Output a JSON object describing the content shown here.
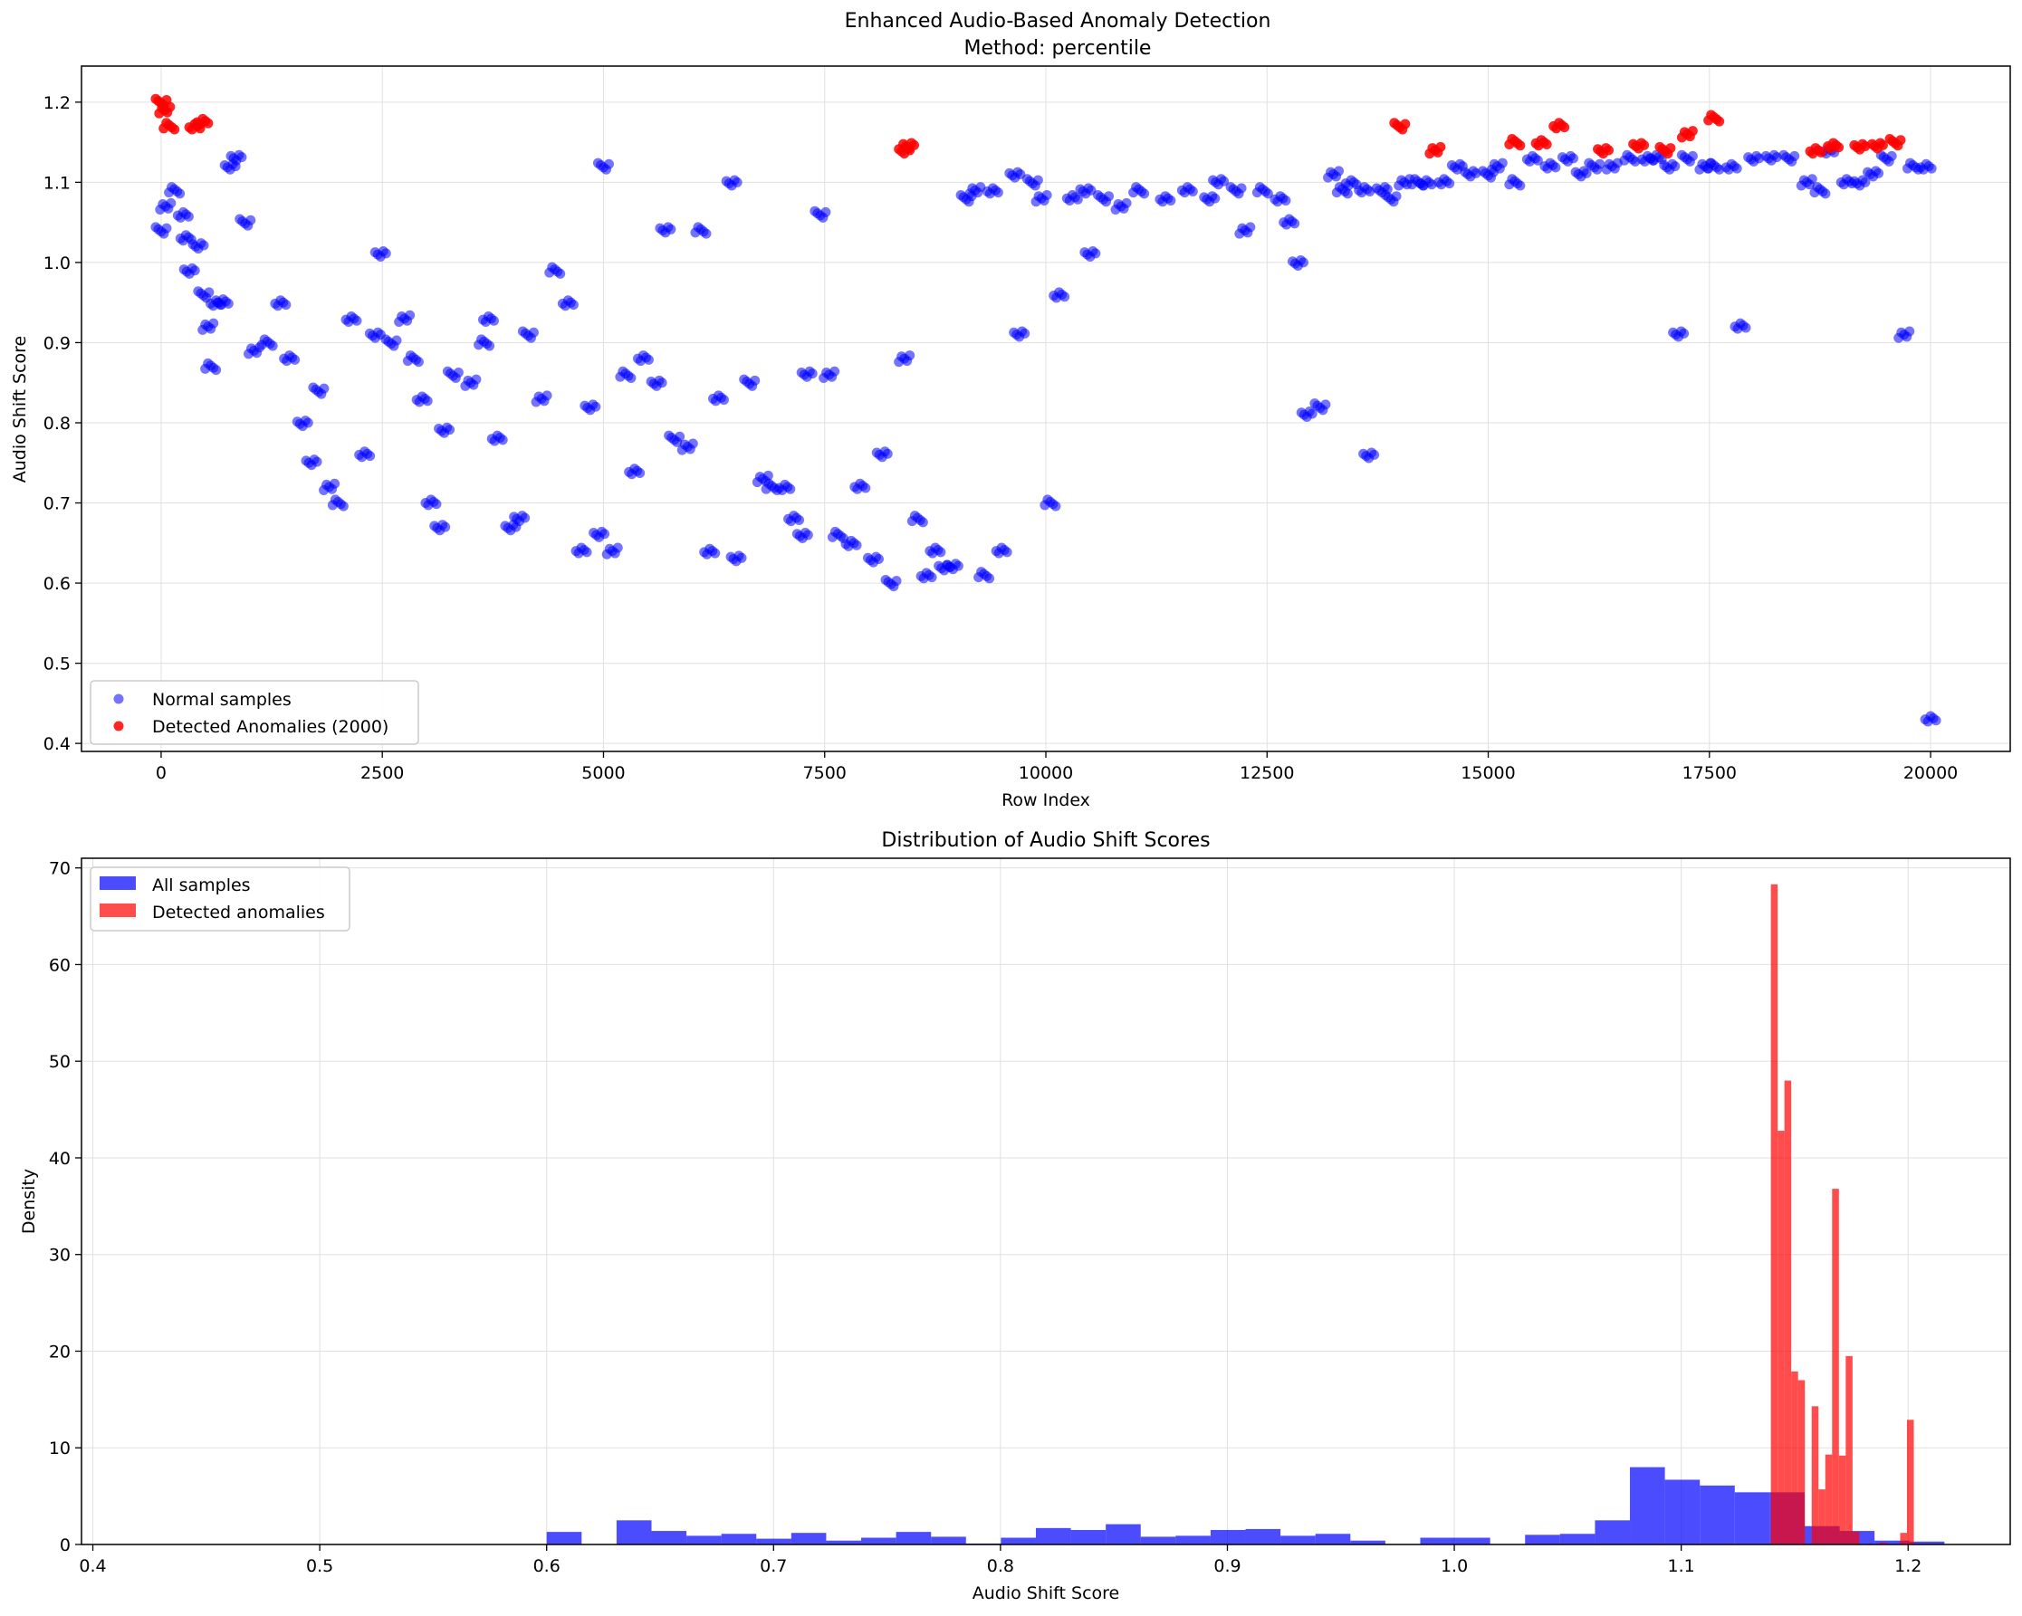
{
  "colors": {
    "normal": "#0000ff",
    "anomaly": "#ff0000",
    "grid": "#e0e0e0",
    "axis": "#000000"
  },
  "chart_data": [
    {
      "type": "scatter",
      "title": "Enhanced Audio-Based Anomaly Detection",
      "subtitle": "Method: percentile",
      "xlabel": "Row Index",
      "ylabel": "Audio Shift Score",
      "xlim": [
        -900,
        20900
      ],
      "ylim": [
        0.39,
        1.245
      ],
      "xticks": [
        0,
        2500,
        5000,
        7500,
        10000,
        12500,
        15000,
        17500,
        20000
      ],
      "yticks": [
        0.4,
        0.5,
        0.6,
        0.7,
        0.8,
        0.9,
        1.0,
        1.1,
        1.2
      ],
      "ytick_labels": [
        "0.4",
        "0.5",
        "0.6",
        "0.7",
        "0.8",
        "0.9",
        "1.0",
        "1.1",
        "1.2"
      ],
      "grid": true,
      "legend_position": "lower-left",
      "series": [
        {
          "name": "Normal samples",
          "color": "#0000ff",
          "segments": [
            [
              0,
              1.04
            ],
            [
              50,
              1.07
            ],
            [
              150,
              1.09
            ],
            [
              250,
              1.06
            ],
            [
              280,
              1.03
            ],
            [
              320,
              0.99
            ],
            [
              420,
              1.02
            ],
            [
              480,
              0.96
            ],
            [
              530,
              0.92
            ],
            [
              560,
              0.87
            ],
            [
              620,
              0.95
            ],
            [
              700,
              0.95
            ],
            [
              780,
              1.12
            ],
            [
              850,
              1.13
            ],
            [
              950,
              1.05
            ],
            [
              1050,
              0.89
            ],
            [
              1200,
              0.9
            ],
            [
              1350,
              0.95
            ],
            [
              1450,
              0.88
            ],
            [
              1600,
              0.8
            ],
            [
              1700,
              0.75
            ],
            [
              1780,
              0.84
            ],
            [
              1900,
              0.72
            ],
            [
              2000,
              0.7
            ],
            [
              2150,
              0.93
            ],
            [
              2300,
              0.76
            ],
            [
              2420,
              0.91
            ],
            [
              2480,
              1.01
            ],
            [
              2600,
              0.9
            ],
            [
              2750,
              0.93
            ],
            [
              2850,
              0.88
            ],
            [
              2950,
              0.83
            ],
            [
              3050,
              0.7
            ],
            [
              3150,
              0.67
            ],
            [
              3200,
              0.79
            ],
            [
              3300,
              0.86
            ],
            [
              3500,
              0.85
            ],
            [
              3650,
              0.9
            ],
            [
              3700,
              0.93
            ],
            [
              3800,
              0.78
            ],
            [
              3950,
              0.67
            ],
            [
              4050,
              0.68
            ],
            [
              4150,
              0.91
            ],
            [
              4300,
              0.83
            ],
            [
              4450,
              0.99
            ],
            [
              4600,
              0.95
            ],
            [
              4750,
              0.64
            ],
            [
              4850,
              0.82
            ],
            [
              4950,
              0.66
            ],
            [
              5000,
              1.12
            ],
            [
              5100,
              0.64
            ],
            [
              5250,
              0.86
            ],
            [
              5350,
              0.74
            ],
            [
              5450,
              0.88
            ],
            [
              5600,
              0.85
            ],
            [
              5700,
              1.04
            ],
            [
              5800,
              0.78
            ],
            [
              5950,
              0.77
            ],
            [
              6100,
              1.04
            ],
            [
              6200,
              0.64
            ],
            [
              6300,
              0.83
            ],
            [
              6450,
              1.1
            ],
            [
              6500,
              0.63
            ],
            [
              6650,
              0.85
            ],
            [
              6800,
              0.73
            ],
            [
              6900,
              0.72
            ],
            [
              7050,
              0.72
            ],
            [
              7150,
              0.68
            ],
            [
              7250,
              0.66
            ],
            [
              7300,
              0.86
            ],
            [
              7450,
              1.06
            ],
            [
              7550,
              0.86
            ],
            [
              7650,
              0.66
            ],
            [
              7800,
              0.65
            ],
            [
              7900,
              0.72
            ],
            [
              8050,
              0.63
            ],
            [
              8150,
              0.76
            ],
            [
              8250,
              0.6
            ],
            [
              8400,
              0.88
            ],
            [
              8550,
              0.68
            ],
            [
              8650,
              0.61
            ],
            [
              8750,
              0.64
            ],
            [
              8850,
              0.62
            ],
            [
              8950,
              0.62
            ],
            [
              9100,
              1.08
            ],
            [
              9200,
              1.09
            ],
            [
              9300,
              0.61
            ],
            [
              9400,
              1.09
            ],
            [
              9500,
              0.64
            ],
            [
              9650,
              1.11
            ],
            [
              9700,
              0.91
            ],
            [
              9850,
              1.1
            ],
            [
              9950,
              1.08
            ],
            [
              10050,
              0.7
            ],
            [
              10150,
              0.96
            ],
            [
              10300,
              1.08
            ],
            [
              10450,
              1.09
            ],
            [
              10500,
              1.01
            ],
            [
              10650,
              1.08
            ],
            [
              10850,
              1.07
            ],
            [
              11050,
              1.09
            ],
            [
              11350,
              1.08
            ],
            [
              11600,
              1.09
            ],
            [
              11850,
              1.08
            ],
            [
              11950,
              1.1
            ],
            [
              12150,
              1.09
            ],
            [
              12250,
              1.04
            ],
            [
              12450,
              1.09
            ],
            [
              12650,
              1.08
            ],
            [
              12750,
              1.05
            ],
            [
              12850,
              1.0
            ],
            [
              12950,
              0.81
            ],
            [
              13100,
              0.82
            ],
            [
              13250,
              1.11
            ],
            [
              13350,
              1.09
            ],
            [
              13450,
              1.1
            ],
            [
              13600,
              1.09
            ],
            [
              13650,
              0.76
            ],
            [
              13800,
              1.09
            ],
            [
              13900,
              1.08
            ],
            [
              14050,
              1.1
            ],
            [
              14200,
              1.1
            ],
            [
              14300,
              1.1
            ],
            [
              14500,
              1.1
            ],
            [
              14650,
              1.12
            ],
            [
              14800,
              1.11
            ],
            [
              15000,
              1.11
            ],
            [
              15100,
              1.12
            ],
            [
              15300,
              1.1
            ],
            [
              15500,
              1.13
            ],
            [
              15700,
              1.12
            ],
            [
              15900,
              1.13
            ],
            [
              16050,
              1.11
            ],
            [
              16200,
              1.12
            ],
            [
              16400,
              1.12
            ],
            [
              16600,
              1.13
            ],
            [
              16800,
              1.13
            ],
            [
              16900,
              1.13
            ],
            [
              17050,
              1.12
            ],
            [
              17150,
              0.91
            ],
            [
              17250,
              1.13
            ],
            [
              17450,
              1.12
            ],
            [
              17550,
              1.12
            ],
            [
              17750,
              1.12
            ],
            [
              17850,
              0.92
            ],
            [
              18000,
              1.13
            ],
            [
              18200,
              1.13
            ],
            [
              18400,
              1.13
            ],
            [
              18600,
              1.1
            ],
            [
              18750,
              1.09
            ],
            [
              18850,
              1.14
            ],
            [
              19050,
              1.1
            ],
            [
              19200,
              1.1
            ],
            [
              19350,
              1.11
            ],
            [
              19500,
              1.13
            ],
            [
              19700,
              0.91
            ],
            [
              19800,
              1.12
            ],
            [
              19950,
              1.12
            ],
            [
              20000,
              0.43
            ]
          ]
        },
        {
          "name": "Detected Anomalies (2000)",
          "color": "#ff0000",
          "segments": [
            [
              0,
              1.2
            ],
            [
              40,
              1.19
            ],
            [
              90,
              1.17
            ],
            [
              380,
              1.17
            ],
            [
              470,
              1.175
            ],
            [
              8400,
              1.14
            ],
            [
              8450,
              1.145
            ],
            [
              14000,
              1.17
            ],
            [
              14400,
              1.14
            ],
            [
              15300,
              1.15
            ],
            [
              15600,
              1.15
            ],
            [
              15800,
              1.17
            ],
            [
              16300,
              1.14
            ],
            [
              16700,
              1.145
            ],
            [
              17000,
              1.14
            ],
            [
              17250,
              1.16
            ],
            [
              17550,
              1.18
            ],
            [
              18700,
              1.14
            ],
            [
              18900,
              1.145
            ],
            [
              19200,
              1.145
            ],
            [
              19400,
              1.145
            ],
            [
              19600,
              1.15
            ]
          ]
        }
      ]
    },
    {
      "type": "bar",
      "title": "Distribution of Audio Shift Scores",
      "xlabel": "Audio Shift Score",
      "ylabel": "Density",
      "xlim": [
        0.395,
        1.245
      ],
      "ylim": [
        0,
        71
      ],
      "xticks": [
        0.4,
        0.5,
        0.6,
        0.7,
        0.8,
        0.9,
        1.0,
        1.1,
        1.2
      ],
      "yticks": [
        0,
        10,
        20,
        30,
        40,
        50,
        60,
        70
      ],
      "grid": true,
      "legend_position": "upper-left",
      "series": [
        {
          "name": "All samples",
          "color": "#0000ff",
          "bin_width": 0.0154,
          "bins": [
            [
              0.6,
              1.3
            ],
            [
              0.6308,
              2.5
            ],
            [
              0.6462,
              1.4
            ],
            [
              0.6616,
              0.9
            ],
            [
              0.677,
              1.1
            ],
            [
              0.6924,
              0.6
            ],
            [
              0.7078,
              1.2
            ],
            [
              0.7232,
              0.4
            ],
            [
              0.7386,
              0.7
            ],
            [
              0.754,
              1.3
            ],
            [
              0.7694,
              0.8
            ],
            [
              0.7848,
              0.1
            ],
            [
              0.8002,
              0.7
            ],
            [
              0.8156,
              1.7
            ],
            [
              0.831,
              1.5
            ],
            [
              0.8464,
              2.1
            ],
            [
              0.8618,
              0.8
            ],
            [
              0.8772,
              0.9
            ],
            [
              0.8926,
              1.5
            ],
            [
              0.908,
              1.6
            ],
            [
              0.9234,
              0.9
            ],
            [
              0.9388,
              1.1
            ],
            [
              0.9542,
              0.4
            ],
            [
              0.985,
              0.7
            ],
            [
              1.0004,
              0.7
            ],
            [
              1.0312,
              1.0
            ],
            [
              1.0466,
              1.1
            ],
            [
              1.062,
              2.5
            ],
            [
              1.0774,
              8.0
            ],
            [
              1.0928,
              6.7
            ],
            [
              1.1082,
              6.1
            ],
            [
              1.1236,
              5.4
            ],
            [
              1.139,
              5.4
            ],
            [
              1.1544,
              1.9
            ],
            [
              1.1698,
              1.4
            ],
            [
              1.1852,
              0.4
            ],
            [
              1.2006,
              0.3
            ]
          ]
        },
        {
          "name": "Detected anomalies",
          "color": "#ff0000",
          "bin_width": 0.003,
          "bins": [
            [
              1.1395,
              68.3
            ],
            [
              1.1425,
              42.8
            ],
            [
              1.1455,
              48.0
            ],
            [
              1.1485,
              17.9
            ],
            [
              1.1515,
              17.0
            ],
            [
              1.1575,
              14.3
            ],
            [
              1.1605,
              5.7
            ],
            [
              1.1635,
              9.3
            ],
            [
              1.1665,
              36.8
            ],
            [
              1.1695,
              9.2
            ],
            [
              1.1725,
              19.5
            ],
            [
              1.1755,
              1.3
            ],
            [
              1.1875,
              0.2
            ],
            [
              1.1965,
              1.2
            ],
            [
              1.1995,
              12.9
            ]
          ]
        }
      ]
    }
  ]
}
